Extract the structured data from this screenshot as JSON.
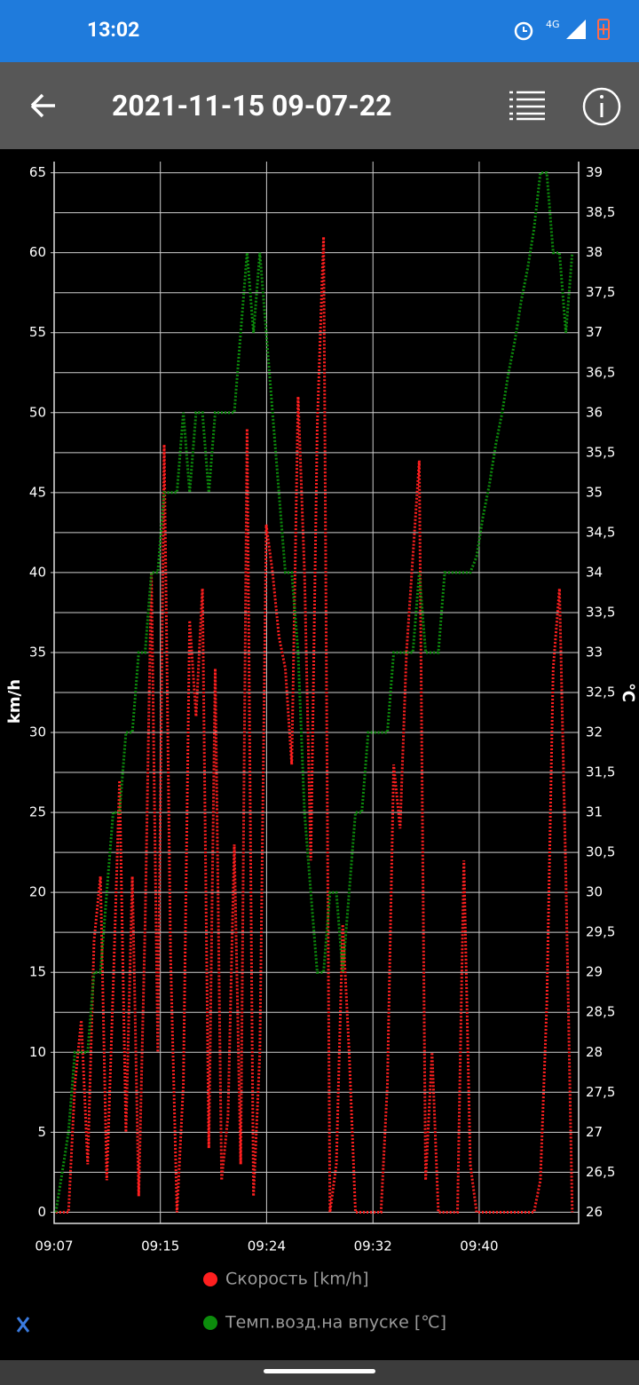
{
  "status_bar": {
    "time": "13:02",
    "network": "4G"
  },
  "app_bar": {
    "title": "2021-11-15 09-07-22"
  },
  "chart_data": {
    "type": "line",
    "y_label": "km/h",
    "y2_label": "℃",
    "x": [
      547.5,
      548,
      548.5,
      549,
      549.5,
      550,
      550.5,
      551,
      551.5,
      552,
      552.5,
      553,
      553.5,
      554,
      554.5,
      555,
      555.5,
      556,
      556.5,
      557,
      557.5,
      558,
      558.5,
      559,
      559.5,
      560,
      560.5,
      561,
      561.5,
      562,
      562.5,
      563,
      563.5,
      564,
      564.5,
      565,
      565.5,
      566,
      566.5,
      567,
      567.5,
      568,
      568.5,
      569,
      569.5,
      570,
      570.5,
      571,
      571.5,
      572,
      572.5,
      573,
      573.5,
      574,
      574.5,
      575,
      575.5,
      576,
      576.5,
      577,
      577.5,
      578,
      578.5,
      579,
      579.5,
      580,
      580.5,
      581,
      581.5,
      582,
      582.5,
      583,
      583.5,
      584,
      584.5,
      585,
      585.5,
      586,
      586.5,
      587,
      587.5,
      588
    ],
    "xlim": [
      547.37,
      588.5
    ],
    "xticks": [
      {
        "value": 547.37,
        "label": "09:07"
      },
      {
        "value": 555.7,
        "label": "09:15"
      },
      {
        "value": 564.03,
        "label": "09:24"
      },
      {
        "value": 572.37,
        "label": "09:32"
      },
      {
        "value": 580.7,
        "label": "09:40"
      }
    ],
    "ylim": [
      -0.7,
      65.7
    ],
    "yticks": [
      0,
      5,
      10,
      15,
      20,
      25,
      30,
      35,
      40,
      45,
      50,
      55,
      60,
      65
    ],
    "y2lim": [
      25.86,
      39.14
    ],
    "y2ticks": [
      26,
      {
        "value": 26.5,
        "label": "26,5"
      },
      27,
      {
        "value": 27.5,
        "label": "27,5"
      },
      28,
      {
        "value": 28.5,
        "label": "28,5"
      },
      29,
      {
        "value": 29.5,
        "label": "29,5"
      },
      30,
      {
        "value": 30.5,
        "label": "30,5"
      },
      31,
      {
        "value": 31.5,
        "label": "31,5"
      },
      32,
      {
        "value": 32.5,
        "label": "32,5"
      },
      33,
      {
        "value": 33.5,
        "label": "33,5"
      },
      34,
      {
        "value": 34.5,
        "label": "34,5"
      },
      35,
      {
        "value": 35.5,
        "label": "35,5"
      },
      36,
      {
        "value": 36.5,
        "label": "36,5"
      },
      37,
      {
        "value": 37.5,
        "label": "37,5"
      },
      38,
      {
        "value": 38.5,
        "label": "38,5"
      },
      39
    ],
    "grid": true,
    "series": [
      {
        "name": "Скорость [km/h]",
        "color": "#ff1f1f",
        "values": [
          0,
          0,
          0,
          8,
          12,
          3,
          17,
          21,
          2,
          14,
          27,
          5,
          21,
          1,
          18,
          40,
          10,
          48,
          16,
          0,
          8,
          37,
          31,
          39,
          4,
          34,
          2,
          6,
          23,
          3,
          49,
          1,
          10,
          43,
          40,
          36,
          34,
          28,
          51,
          40,
          22,
          49,
          61,
          0,
          3,
          18,
          10,
          0,
          0,
          0,
          0,
          0,
          8,
          28,
          24,
          35,
          41,
          47,
          2,
          10,
          0,
          0,
          0,
          0,
          22,
          3,
          0,
          0,
          0,
          0,
          0,
          0,
          0,
          0,
          0,
          0,
          2,
          13,
          34,
          39,
          21,
          0
        ]
      },
      {
        "name": "Темп.возд.на впуске [℃]",
        "color": "#0c8c0c",
        "axis": "y2",
        "values": [
          26,
          26.5,
          27,
          28,
          28,
          28,
          29,
          29,
          30,
          31,
          31,
          32,
          32,
          33,
          33,
          34,
          34,
          35,
          35,
          35,
          36,
          35,
          36,
          36,
          35,
          36,
          36,
          36,
          36,
          37,
          38,
          37,
          38,
          37,
          36,
          35,
          34,
          34,
          33,
          31,
          30,
          29,
          29,
          30,
          30,
          29,
          30,
          31,
          31,
          32,
          32,
          32,
          32,
          33,
          33,
          33,
          33,
          34,
          33,
          33,
          33,
          34,
          34,
          34,
          34,
          34,
          34.2,
          34.7,
          35.1,
          35.6,
          36,
          36.5,
          36.9,
          37.4,
          37.8,
          38.3,
          39,
          39,
          38,
          38,
          37,
          38
        ]
      }
    ]
  }
}
